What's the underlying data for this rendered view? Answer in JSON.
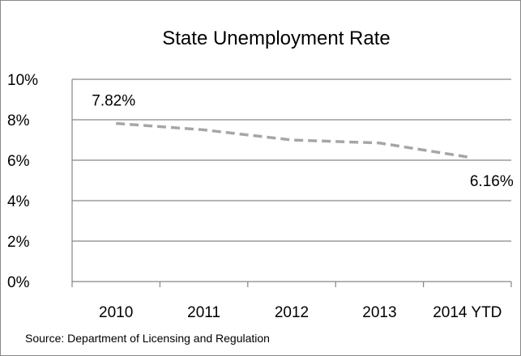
{
  "chart_data": {
    "type": "line",
    "title": "State Unemployment Rate",
    "categories": [
      "2010",
      "2011",
      "2012",
      "2013",
      "2014 YTD"
    ],
    "series": [
      {
        "values": [
          7.82,
          7.5,
          7.0,
          6.85,
          6.16
        ]
      }
    ],
    "ylim": [
      0,
      10
    ],
    "y_ticks": [
      "0%",
      "2%",
      "4%",
      "6%",
      "8%",
      "10%"
    ],
    "y_tick_values": [
      0,
      2,
      4,
      6,
      8,
      10
    ],
    "data_labels": [
      {
        "index": 0,
        "text": "7.82%"
      },
      {
        "index": 4,
        "text": "6.16%"
      }
    ],
    "line_style": "dashed",
    "line_color": "#a6a6a6",
    "grid": true,
    "legend": "none",
    "source": "Source: Department of Licensing and Regulation"
  }
}
